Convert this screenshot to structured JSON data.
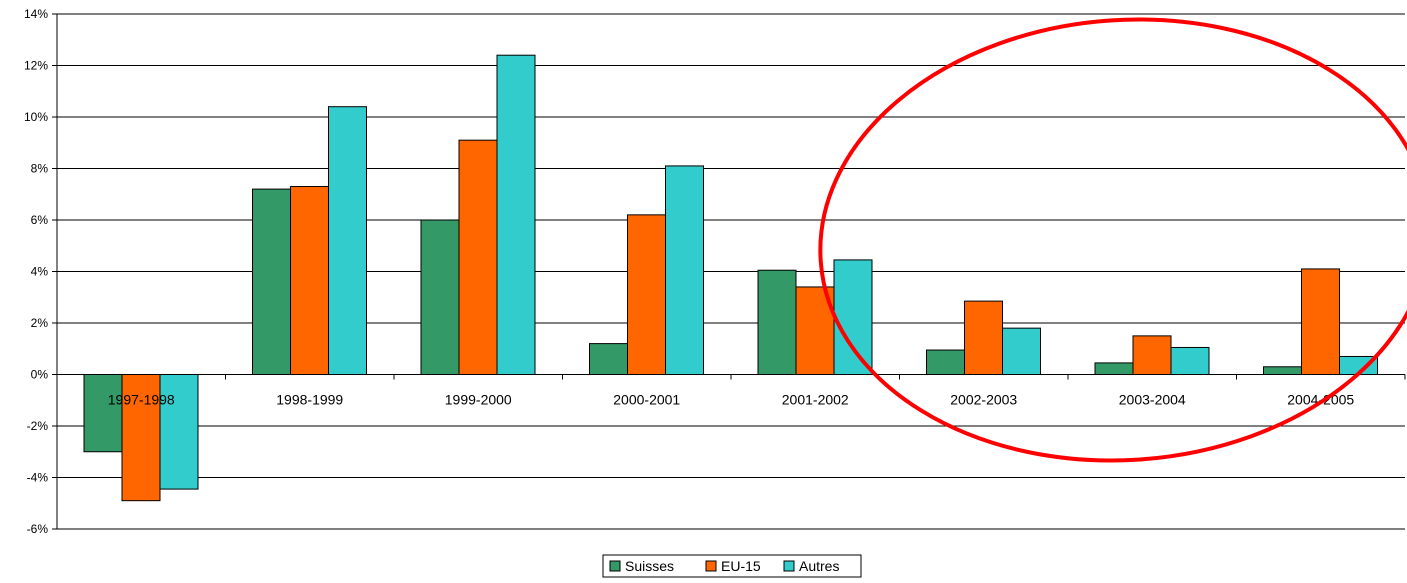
{
  "chart_data": {
    "type": "bar",
    "categories": [
      "1997-1998",
      "1998-1999",
      "1999-2000",
      "2000-2001",
      "2001-2002",
      "2002-2003",
      "2003-2004",
      "2004-2005"
    ],
    "series": [
      {
        "name": "Suisses",
        "color": "#339966",
        "values": [
          -3.0,
          7.2,
          6.0,
          1.2,
          4.05,
          0.95,
          0.45,
          0.3
        ]
      },
      {
        "name": "EU-15",
        "color": "#FF6600",
        "values": [
          -4.9,
          7.3,
          9.1,
          6.2,
          3.4,
          2.85,
          1.5,
          4.1
        ]
      },
      {
        "name": "Autres",
        "color": "#33CCCC",
        "values": [
          -4.45,
          10.4,
          12.4,
          8.1,
          4.45,
          1.8,
          1.05,
          0.7
        ]
      }
    ],
    "ylim": [
      -6,
      14
    ],
    "yticks": [
      "-6%",
      "-4%",
      "-2%",
      "0%",
      "2%",
      "4%",
      "6%",
      "8%",
      "10%",
      "12%",
      "14%"
    ],
    "ytick_values": [
      -6,
      -4,
      -2,
      0,
      2,
      4,
      6,
      8,
      10,
      12,
      14
    ],
    "grid": true,
    "legend_position": "bottom",
    "annotation": {
      "shape": "ellipse",
      "color": "#FF0000",
      "encloses": [
        "2002-2003",
        "2003-2004",
        "2004-2005"
      ]
    }
  }
}
